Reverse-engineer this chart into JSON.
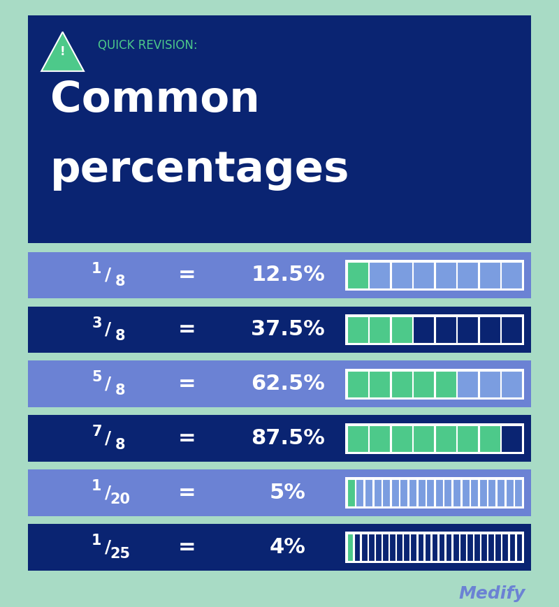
{
  "bg_color": "#a8dbc5",
  "header_bg": "#0a2472",
  "header_quick_revision": "QUICK REVISION:",
  "header_title_line1": "Common",
  "header_title_line2": "percentages",
  "rows": [
    {
      "fraction_num": "1",
      "fraction_den": "8",
      "pct": "12.5%",
      "filled": 1,
      "total": 8,
      "bg": "#6b82d4"
    },
    {
      "fraction_num": "3",
      "fraction_den": "8",
      "pct": "37.5%",
      "filled": 3,
      "total": 8,
      "bg": "#0a2472"
    },
    {
      "fraction_num": "5",
      "fraction_den": "8",
      "pct": "62.5%",
      "filled": 5,
      "total": 8,
      "bg": "#6b82d4"
    },
    {
      "fraction_num": "7",
      "fraction_den": "8",
      "pct": "87.5%",
      "filled": 7,
      "total": 8,
      "bg": "#0a2472"
    },
    {
      "fraction_num": "1",
      "fraction_den": "20",
      "pct": "5%",
      "filled": 1,
      "total": 20,
      "bg": "#6b82d4"
    },
    {
      "fraction_num": "1",
      "fraction_den": "25",
      "pct": "4%",
      "filled": 1,
      "total": 25,
      "bg": "#0a2472"
    }
  ],
  "green_color": "#4dc98a",
  "light_blue_unfilled": "#7b9de0",
  "dark_blue_unfilled": "#0a2472",
  "white": "#ffffff",
  "medify_color": "#6b82d4",
  "triangle_color": "#4dc98a",
  "quick_revision_color": "#4dc98a"
}
